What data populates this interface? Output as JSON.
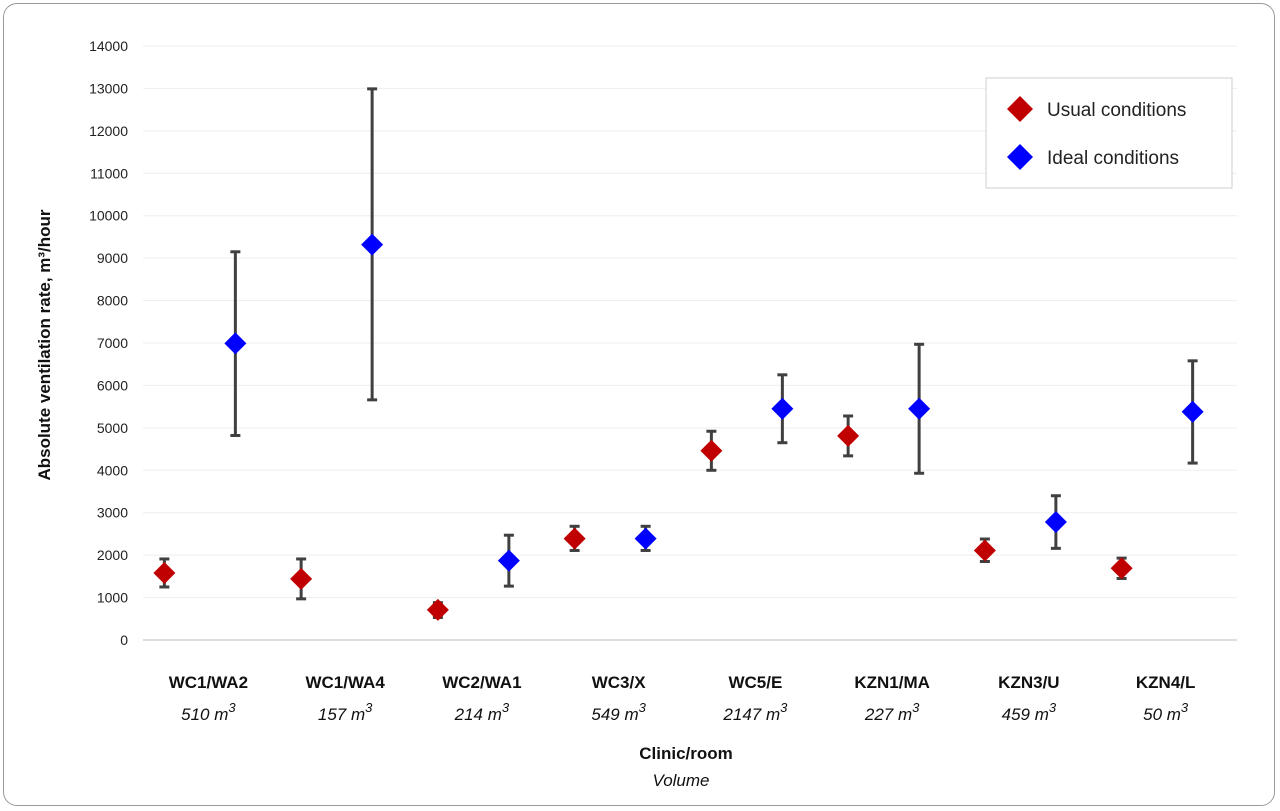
{
  "chart_data": {
    "type": "scatter",
    "xlabel": "Clinic/room",
    "xlabel_sub": "Volume",
    "ylabel": "Absolute ventilation rate, m³/hour",
    "ylim": [
      0,
      14000
    ],
    "yticks": [
      0,
      1000,
      2000,
      3000,
      4000,
      5000,
      6000,
      7000,
      8000,
      9000,
      10000,
      11000,
      12000,
      13000,
      14000
    ],
    "grid": true,
    "legend_position": "top-right",
    "categories": [
      "WC1/WA2",
      "WC1/WA4",
      "WC2/WA1",
      "WC3/X",
      "WC5/E",
      "KZN1/MA",
      "KZN3/U",
      "KZN4/L"
    ],
    "volumes": [
      {
        "value": "510",
        "unit": "m",
        "exp": "3"
      },
      {
        "value": "157",
        "unit": "m",
        "exp": "3"
      },
      {
        "value": "214",
        "unit": "m",
        "exp": "3"
      },
      {
        "value": "549",
        "unit": "m",
        "exp": "3"
      },
      {
        "value": "2147",
        "unit": "m",
        "exp": "3"
      },
      {
        "value": "227",
        "unit": "m",
        "exp": "3"
      },
      {
        "value": "459",
        "unit": "m",
        "exp": "3"
      },
      {
        "value": "50",
        "unit": "m",
        "exp": "3"
      }
    ],
    "series": [
      {
        "name": "Usual conditions",
        "color": "#c00000",
        "values": [
          1580,
          1440,
          710,
          2390,
          4460,
          4810,
          2110,
          1690
        ],
        "error_low": [
          1250,
          970,
          530,
          2110,
          4000,
          4340,
          1850,
          1450
        ],
        "error_high": [
          1910,
          1910,
          880,
          2680,
          4920,
          5280,
          2380,
          1930
        ]
      },
      {
        "name": "Ideal conditions",
        "color": "#0000ff",
        "values": [
          6990,
          9320,
          1870,
          2390,
          5450,
          5450,
          2780,
          5380
        ],
        "error_low": [
          4820,
          5660,
          1270,
          2110,
          4650,
          3930,
          2160,
          4170
        ],
        "error_high": [
          9150,
          12990,
          2470,
          2680,
          6250,
          6970,
          3400,
          6580
        ]
      }
    ]
  }
}
